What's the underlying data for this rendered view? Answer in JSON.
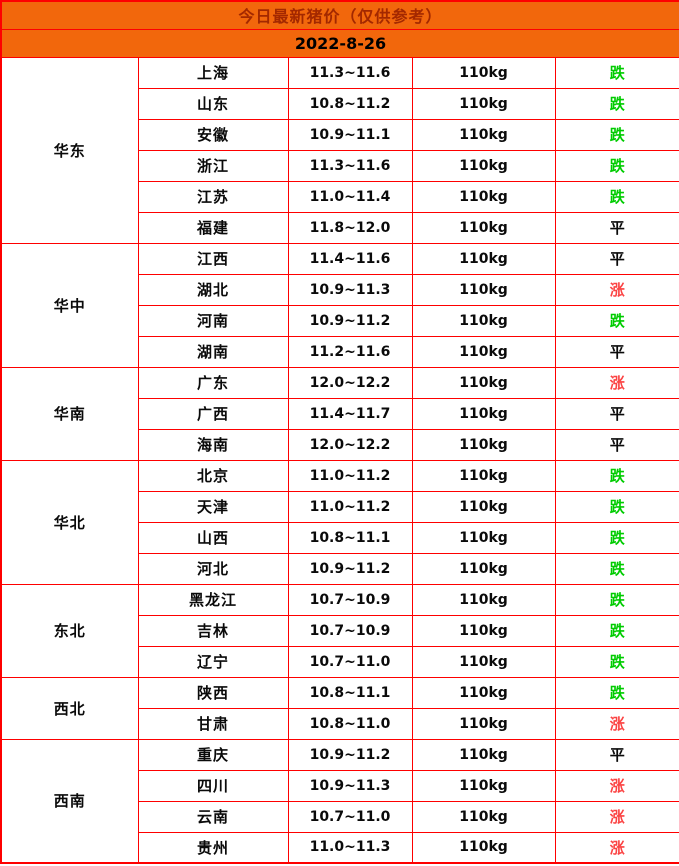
{
  "header": {
    "title": "今日最新猪价（仅供参考）",
    "date": "2022-8-26"
  },
  "colors": {
    "header_bg": "#f2670c",
    "title_text": "#a32800",
    "date_text": "#000000",
    "border": "#fe0000",
    "trend_up": "#fb4343",
    "trend_down": "#00cc00",
    "trend_flat": "#0a0a0a"
  },
  "table": {
    "columns": [
      "region",
      "province",
      "price_range",
      "weight",
      "trend"
    ],
    "regions": [
      {
        "name": "华东",
        "rows": [
          {
            "province": "上海",
            "price": "11.3~11.6",
            "weight": "110kg",
            "trend": "跌",
            "trend_type": "down"
          },
          {
            "province": "山东",
            "price": "10.8~11.2",
            "weight": "110kg",
            "trend": "跌",
            "trend_type": "down"
          },
          {
            "province": "安徽",
            "price": "10.9~11.1",
            "weight": "110kg",
            "trend": "跌",
            "trend_type": "down"
          },
          {
            "province": "浙江",
            "price": "11.3~11.6",
            "weight": "110kg",
            "trend": "跌",
            "trend_type": "down"
          },
          {
            "province": "江苏",
            "price": "11.0~11.4",
            "weight": "110kg",
            "trend": "跌",
            "trend_type": "down"
          },
          {
            "province": "福建",
            "price": "11.8~12.0",
            "weight": "110kg",
            "trend": "平",
            "trend_type": "flat"
          }
        ]
      },
      {
        "name": "华中",
        "rows": [
          {
            "province": "江西",
            "price": "11.4~11.6",
            "weight": "110kg",
            "trend": "平",
            "trend_type": "flat"
          },
          {
            "province": "湖北",
            "price": "10.9~11.3",
            "weight": "110kg",
            "trend": "涨",
            "trend_type": "up"
          },
          {
            "province": "河南",
            "price": "10.9~11.2",
            "weight": "110kg",
            "trend": "跌",
            "trend_type": "down"
          },
          {
            "province": "湖南",
            "price": "11.2~11.6",
            "weight": "110kg",
            "trend": "平",
            "trend_type": "flat"
          }
        ]
      },
      {
        "name": "华南",
        "rows": [
          {
            "province": "广东",
            "price": "12.0~12.2",
            "weight": "110kg",
            "trend": "涨",
            "trend_type": "up"
          },
          {
            "province": "广西",
            "price": "11.4~11.7",
            "weight": "110kg",
            "trend": "平",
            "trend_type": "flat"
          },
          {
            "province": "海南",
            "price": "12.0~12.2",
            "weight": "110kg",
            "trend": "平",
            "trend_type": "flat"
          }
        ]
      },
      {
        "name": "华北",
        "rows": [
          {
            "province": "北京",
            "price": "11.0~11.2",
            "weight": "110kg",
            "trend": "跌",
            "trend_type": "down"
          },
          {
            "province": "天津",
            "price": "11.0~11.2",
            "weight": "110kg",
            "trend": "跌",
            "trend_type": "down"
          },
          {
            "province": "山西",
            "price": "10.8~11.1",
            "weight": "110kg",
            "trend": "跌",
            "trend_type": "down"
          },
          {
            "province": "河北",
            "price": "10.9~11.2",
            "weight": "110kg",
            "trend": "跌",
            "trend_type": "down"
          }
        ]
      },
      {
        "name": "东北",
        "rows": [
          {
            "province": "黑龙江",
            "price": "10.7~10.9",
            "weight": "110kg",
            "trend": "跌",
            "trend_type": "down"
          },
          {
            "province": "吉林",
            "price": "10.7~10.9",
            "weight": "110kg",
            "trend": "跌",
            "trend_type": "down"
          },
          {
            "province": "辽宁",
            "price": "10.7~11.0",
            "weight": "110kg",
            "trend": "跌",
            "trend_type": "down"
          }
        ]
      },
      {
        "name": "西北",
        "rows": [
          {
            "province": "陕西",
            "price": "10.8~11.1",
            "weight": "110kg",
            "trend": "跌",
            "trend_type": "down"
          },
          {
            "province": "甘肃",
            "price": "10.8~11.0",
            "weight": "110kg",
            "trend": "涨",
            "trend_type": "up"
          }
        ]
      },
      {
        "name": "西南",
        "rows": [
          {
            "province": "重庆",
            "price": "10.9~11.2",
            "weight": "110kg",
            "trend": "平",
            "trend_type": "flat"
          },
          {
            "province": "四川",
            "price": "10.9~11.3",
            "weight": "110kg",
            "trend": "涨",
            "trend_type": "up"
          },
          {
            "province": "云南",
            "price": "10.7~11.0",
            "weight": "110kg",
            "trend": "涨",
            "trend_type": "up"
          },
          {
            "province": "贵州",
            "price": "11.0~11.3",
            "weight": "110kg",
            "trend": "涨",
            "trend_type": "up"
          }
        ]
      }
    ]
  }
}
